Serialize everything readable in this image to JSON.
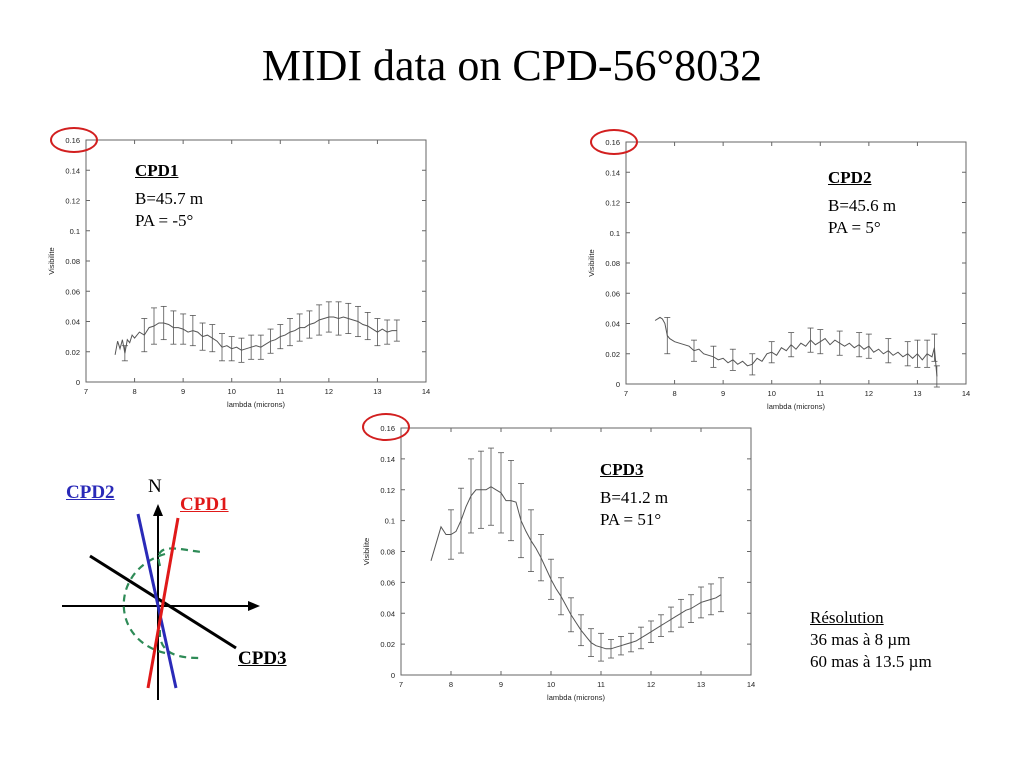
{
  "slide": {
    "title": "MIDI data on CPD-56°8032"
  },
  "chart_data": [
    {
      "id": "cpd1",
      "type": "line",
      "title": "",
      "xlabel": "lambda (microns)",
      "ylabel": "Visibilite",
      "xlim": [
        7,
        14
      ],
      "ylim": [
        0,
        0.16
      ],
      "xticks": [
        "7",
        "8",
        "9",
        "10",
        "11",
        "12",
        "13",
        "14"
      ],
      "yticks": [
        "0",
        "0.02",
        "0.04",
        "0.06",
        "0.08",
        "0.1",
        "0.12",
        "0.14",
        "0.16"
      ],
      "highlighted_tick": "0.16",
      "annotation": {
        "name": "CPD1",
        "lines": [
          "B=45.7 m",
          "PA = -5°"
        ]
      },
      "series": [
        {
          "x": [
            7.6,
            7.65,
            7.7,
            7.75,
            7.8,
            7.85,
            7.9,
            7.95,
            8.0,
            8.1,
            8.2,
            8.3,
            8.4,
            8.5,
            8.6,
            8.7,
            8.8,
            8.9,
            9.0,
            9.1,
            9.2,
            9.3,
            9.4,
            9.5,
            9.6,
            9.7,
            9.8,
            9.9,
            10.0,
            10.1,
            10.2,
            10.3,
            10.4,
            10.5,
            10.6,
            10.7,
            10.8,
            10.9,
            11.0,
            11.1,
            11.2,
            11.3,
            11.4,
            11.5,
            11.6,
            11.7,
            11.8,
            11.9,
            12.0,
            12.1,
            12.2,
            12.3,
            12.4,
            12.5,
            12.6,
            12.7,
            12.8,
            12.9,
            13.0,
            13.1,
            13.2,
            13.3,
            13.4
          ],
          "y": [
            0.018,
            0.027,
            0.022,
            0.028,
            0.019,
            0.028,
            0.026,
            0.031,
            0.029,
            0.033,
            0.031,
            0.036,
            0.037,
            0.039,
            0.039,
            0.038,
            0.036,
            0.036,
            0.035,
            0.033,
            0.034,
            0.033,
            0.03,
            0.031,
            0.029,
            0.027,
            0.023,
            0.024,
            0.022,
            0.023,
            0.021,
            0.022,
            0.023,
            0.024,
            0.023,
            0.025,
            0.027,
            0.028,
            0.03,
            0.031,
            0.033,
            0.034,
            0.036,
            0.036,
            0.038,
            0.039,
            0.041,
            0.042,
            0.043,
            0.043,
            0.042,
            0.043,
            0.042,
            0.041,
            0.04,
            0.038,
            0.037,
            0.035,
            0.033,
            0.035,
            0.033,
            0.034,
            0.034
          ],
          "err": [
            0,
            0,
            0,
            0,
            0.005,
            0,
            0,
            0,
            0,
            0,
            0.011,
            0,
            0.012,
            0,
            0.011,
            0,
            0.011,
            0,
            0.01,
            0,
            0.01,
            0,
            0.009,
            0,
            0.009,
            0,
            0.009,
            0,
            0.008,
            0,
            0.008,
            0,
            0.008,
            0,
            0.008,
            0,
            0.008,
            0,
            0.008,
            0,
            0.009,
            0,
            0.009,
            0,
            0.009,
            0,
            0.01,
            0,
            0.01,
            0,
            0.011,
            0,
            0.01,
            0,
            0.01,
            0,
            0.009,
            0,
            0.009,
            0,
            0.008,
            0,
            0.007
          ]
        }
      ]
    },
    {
      "id": "cpd2",
      "type": "line",
      "title": "",
      "xlabel": "lambda (microns)",
      "ylabel": "Visibilite",
      "xlim": [
        7,
        14
      ],
      "ylim": [
        0,
        0.16
      ],
      "xticks": [
        "7",
        "8",
        "9",
        "10",
        "11",
        "12",
        "13",
        "14"
      ],
      "yticks": [
        "0",
        "0.02",
        "0.04",
        "0.06",
        "0.08",
        "0.1",
        "0.12",
        "0.14",
        "0.16"
      ],
      "highlighted_tick": "0.16",
      "annotation": {
        "name": "CPD2",
        "lines": [
          "B=45.6 m",
          "PA = 5°"
        ]
      },
      "series": [
        {
          "x": [
            7.6,
            7.7,
            7.75,
            7.8,
            7.85,
            7.9,
            8.0,
            8.1,
            8.2,
            8.3,
            8.4,
            8.5,
            8.6,
            8.7,
            8.8,
            8.9,
            9.0,
            9.1,
            9.2,
            9.3,
            9.4,
            9.5,
            9.6,
            9.7,
            9.8,
            9.9,
            10.0,
            10.1,
            10.2,
            10.3,
            10.4,
            10.5,
            10.6,
            10.7,
            10.8,
            10.9,
            11.0,
            11.1,
            11.2,
            11.3,
            11.4,
            11.5,
            11.6,
            11.7,
            11.8,
            11.9,
            12.0,
            12.1,
            12.2,
            12.3,
            12.4,
            12.5,
            12.6,
            12.7,
            12.8,
            12.9,
            13.0,
            13.1,
            13.2,
            13.3,
            13.35,
            13.4
          ],
          "y": [
            0.042,
            0.044,
            0.043,
            0.04,
            0.032,
            0.03,
            0.028,
            0.027,
            0.026,
            0.025,
            0.022,
            0.023,
            0.02,
            0.019,
            0.018,
            0.016,
            0.017,
            0.014,
            0.016,
            0.013,
            0.015,
            0.012,
            0.013,
            0.017,
            0.015,
            0.02,
            0.021,
            0.019,
            0.024,
            0.022,
            0.026,
            0.023,
            0.027,
            0.025,
            0.029,
            0.026,
            0.028,
            0.03,
            0.026,
            0.029,
            0.027,
            0.025,
            0.027,
            0.024,
            0.026,
            0.023,
            0.025,
            0.021,
            0.023,
            0.02,
            0.022,
            0.019,
            0.021,
            0.018,
            0.02,
            0.017,
            0.02,
            0.016,
            0.02,
            0.018,
            0.024,
            0.005
          ],
          "err": [
            0,
            0,
            0,
            0,
            0.012,
            0,
            0,
            0,
            0,
            0,
            0.007,
            0,
            0,
            0,
            0.007,
            0,
            0,
            0,
            0.007,
            0,
            0,
            0,
            0.007,
            0,
            0,
            0,
            0.007,
            0,
            0,
            0,
            0.008,
            0,
            0,
            0,
            0.008,
            0,
            0.008,
            0,
            0,
            0,
            0.008,
            0,
            0,
            0,
            0.008,
            0,
            0.008,
            0,
            0,
            0,
            0.008,
            0,
            0,
            0,
            0.008,
            0,
            0.009,
            0,
            0.009,
            0,
            0.009,
            0.007
          ]
        }
      ]
    },
    {
      "id": "cpd3",
      "type": "line",
      "title": "",
      "xlabel": "lambda (microns)",
      "ylabel": "Visibilite",
      "xlim": [
        7,
        14
      ],
      "ylim": [
        0,
        0.16
      ],
      "xticks": [
        "7",
        "8",
        "9",
        "10",
        "11",
        "12",
        "13",
        "14"
      ],
      "yticks": [
        "0",
        "0.02",
        "0.04",
        "0.06",
        "0.08",
        "0.1",
        "0.12",
        "0.14",
        "0.16"
      ],
      "highlighted_tick": "0.16",
      "annotation": {
        "name": "CPD3",
        "lines": [
          "B=41.2 m",
          "PA = 51°"
        ]
      },
      "series": [
        {
          "x": [
            7.6,
            7.7,
            7.8,
            7.9,
            8.0,
            8.1,
            8.2,
            8.3,
            8.4,
            8.5,
            8.6,
            8.7,
            8.8,
            8.9,
            9.0,
            9.1,
            9.2,
            9.3,
            9.4,
            9.5,
            9.6,
            9.7,
            9.8,
            9.9,
            10.0,
            10.1,
            10.2,
            10.3,
            10.4,
            10.5,
            10.6,
            10.7,
            10.8,
            10.9,
            11.0,
            11.1,
            11.2,
            11.3,
            11.4,
            11.5,
            11.6,
            11.7,
            11.8,
            11.9,
            12.0,
            12.1,
            12.2,
            12.3,
            12.4,
            12.5,
            12.6,
            12.7,
            12.8,
            12.9,
            13.0,
            13.1,
            13.2,
            13.3,
            13.4
          ],
          "y": [
            0.074,
            0.085,
            0.096,
            0.091,
            0.091,
            0.093,
            0.1,
            0.109,
            0.116,
            0.12,
            0.12,
            0.12,
            0.122,
            0.12,
            0.118,
            0.113,
            0.113,
            0.112,
            0.1,
            0.093,
            0.087,
            0.082,
            0.076,
            0.069,
            0.062,
            0.056,
            0.051,
            0.045,
            0.039,
            0.034,
            0.029,
            0.025,
            0.021,
            0.019,
            0.018,
            0.017,
            0.017,
            0.018,
            0.019,
            0.02,
            0.021,
            0.022,
            0.024,
            0.026,
            0.028,
            0.03,
            0.032,
            0.034,
            0.036,
            0.038,
            0.04,
            0.042,
            0.043,
            0.045,
            0.047,
            0.048,
            0.049,
            0.05,
            0.052
          ],
          "err": [
            0,
            0,
            0,
            0,
            0.016,
            0,
            0.021,
            0,
            0.024,
            0,
            0.025,
            0,
            0.025,
            0,
            0.026,
            0,
            0.026,
            0,
            0.024,
            0,
            0.02,
            0,
            0.015,
            0,
            0.013,
            0,
            0.012,
            0,
            0.011,
            0,
            0.01,
            0,
            0.009,
            0,
            0.009,
            0,
            0.006,
            0,
            0.006,
            0,
            0.006,
            0,
            0.007,
            0,
            0.007,
            0,
            0.007,
            0,
            0.008,
            0,
            0.009,
            0,
            0.009,
            0,
            0.01,
            0,
            0.01,
            0,
            0.011
          ]
        }
      ]
    }
  ],
  "baseline_diagram": {
    "north_label": "N",
    "labels": [
      {
        "text": "CPD2",
        "color": "#2a2ab8"
      },
      {
        "text": "CPD1",
        "color": "#e01919"
      },
      {
        "text": "CPD3",
        "color": "#000000"
      }
    ],
    "line_colors": {
      "cpd1": "#e01919",
      "cpd2": "#2a2ab8",
      "cpd3": "#000000",
      "ellipse": "#2e8b57"
    }
  },
  "resolution": {
    "heading": "Résolution",
    "lines": [
      "36 mas à 8 µm",
      "60 mas à 13.5 µm"
    ]
  },
  "colors": {
    "highlight_circle": "#d21f1f",
    "data_line": "#555555"
  }
}
